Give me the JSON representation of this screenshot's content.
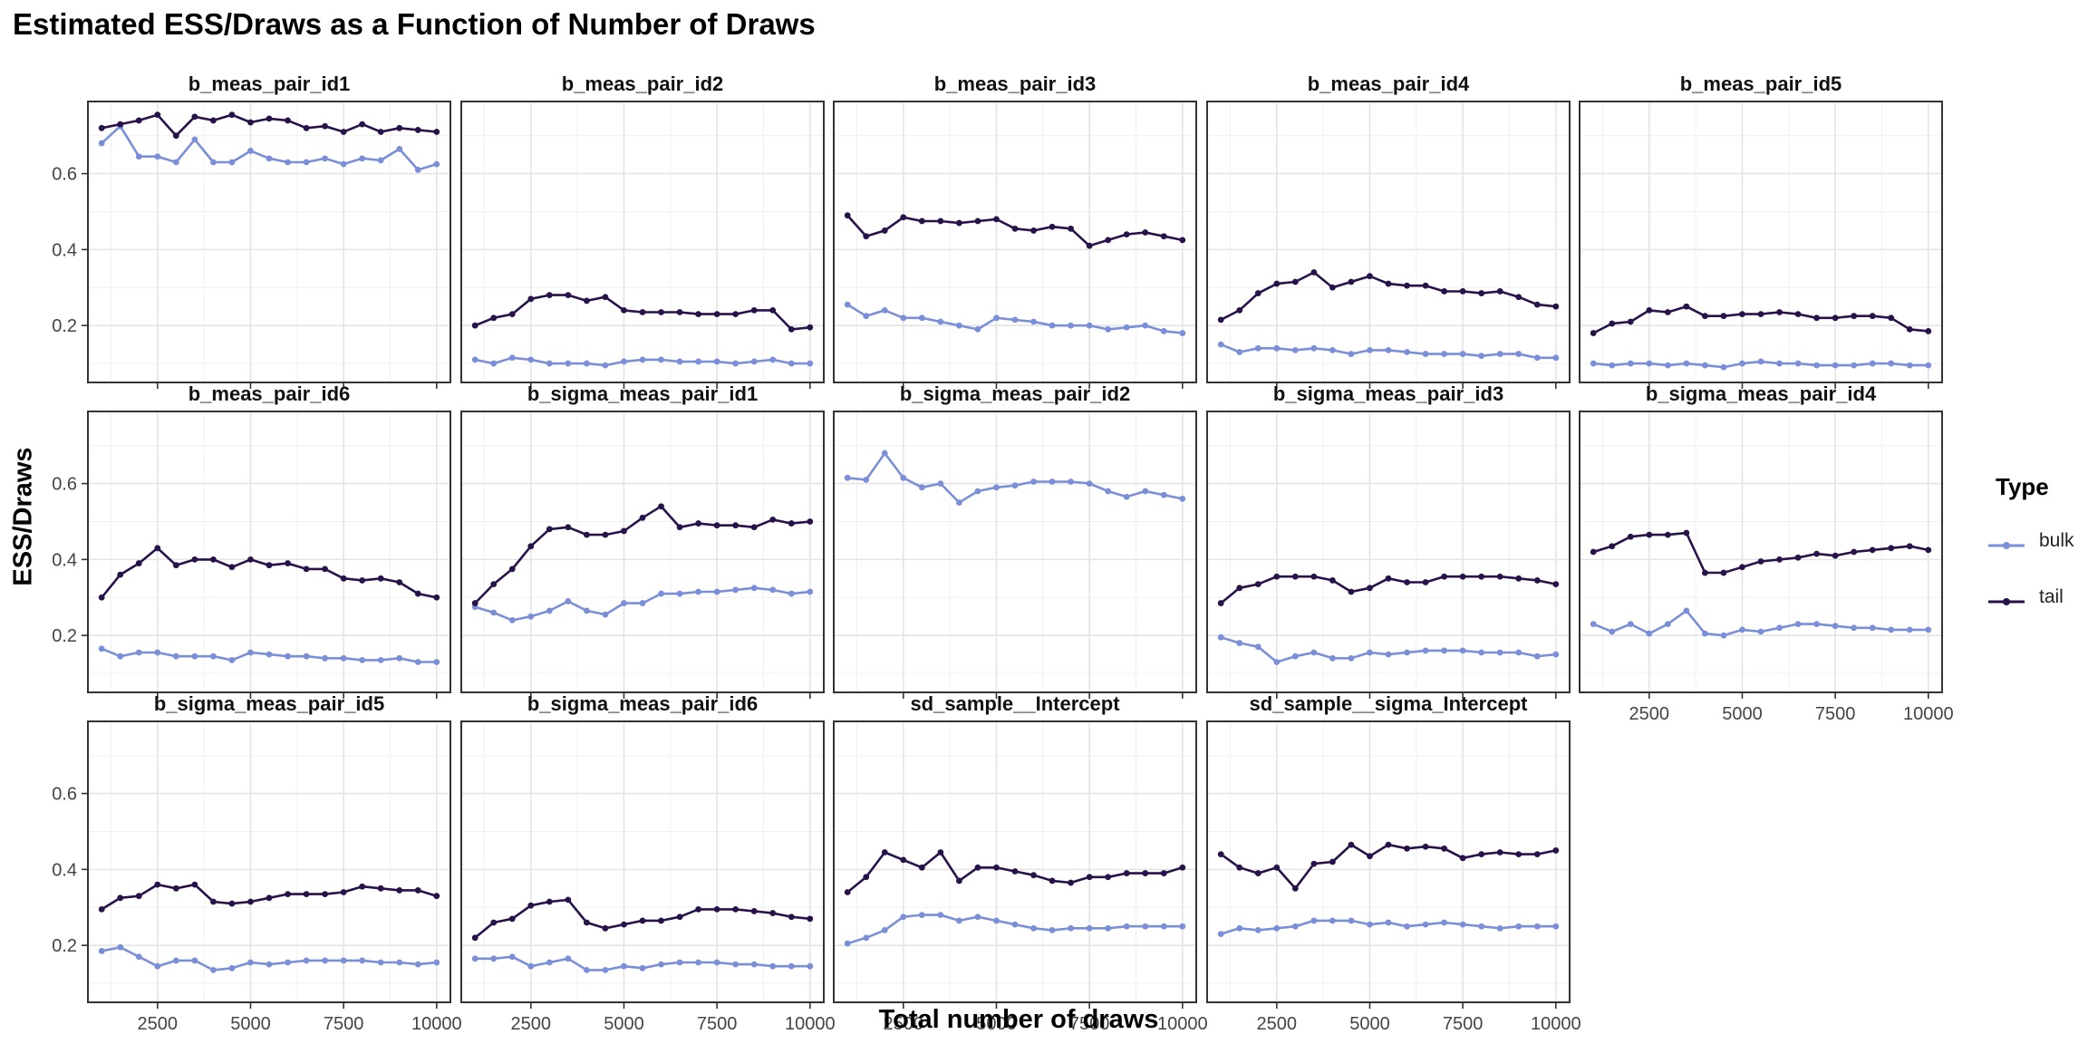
{
  "chart_data": {
    "type": "line",
    "title": "Estimated ESS/Draws as a Function of Number of Draws",
    "xlabel": "Total number of draws",
    "ylabel": "ESS/Draws",
    "x": [
      1000,
      1500,
      2000,
      2500,
      3000,
      3500,
      4000,
      4500,
      5000,
      5500,
      6000,
      6500,
      7000,
      7500,
      8000,
      8500,
      9000,
      9500,
      10000
    ],
    "xlim": [
      630,
      10370
    ],
    "ylim": [
      0.05,
      0.79
    ],
    "x_ticks": [
      "2500",
      "5000",
      "7500",
      "10000"
    ],
    "x_tick_values": [
      2500,
      5000,
      7500,
      10000
    ],
    "y_ticks": [
      "0.2",
      "0.4",
      "0.6"
    ],
    "y_tick_values": [
      0.2,
      0.4,
      0.6
    ],
    "grid": true,
    "legend": {
      "title": "Type",
      "placement": "right",
      "entries": [
        {
          "name": "bulk",
          "color": "#7b8fd9"
        },
        {
          "name": "tail",
          "color": "#27124a"
        }
      ]
    },
    "panels": [
      {
        "name": "b_meas_pair_id1",
        "bulk": [
          0.68,
          0.725,
          0.645,
          0.645,
          0.63,
          0.69,
          0.63,
          0.63,
          0.66,
          0.64,
          0.63,
          0.63,
          0.64,
          0.625,
          0.64,
          0.635,
          0.665,
          0.61,
          0.625
        ],
        "tail": [
          0.72,
          0.73,
          0.74,
          0.755,
          0.7,
          0.75,
          0.74,
          0.755,
          0.735,
          0.745,
          0.74,
          0.72,
          0.725,
          0.71,
          0.73,
          0.71,
          0.72,
          0.715,
          0.71
        ]
      },
      {
        "name": "b_meas_pair_id2",
        "bulk": [
          0.11,
          0.1,
          0.115,
          0.11,
          0.1,
          0.1,
          0.1,
          0.095,
          0.105,
          0.11,
          0.11,
          0.105,
          0.105,
          0.105,
          0.1,
          0.105,
          0.11,
          0.1,
          0.1
        ],
        "tail": [
          0.2,
          0.22,
          0.23,
          0.27,
          0.28,
          0.28,
          0.265,
          0.275,
          0.24,
          0.235,
          0.235,
          0.235,
          0.23,
          0.23,
          0.23,
          0.24,
          0.24,
          0.19,
          0.195
        ]
      },
      {
        "name": "b_meas_pair_id3",
        "bulk": [
          0.255,
          0.225,
          0.24,
          0.22,
          0.22,
          0.21,
          0.2,
          0.19,
          0.22,
          0.215,
          0.21,
          0.2,
          0.2,
          0.2,
          0.19,
          0.195,
          0.2,
          0.185,
          0.18
        ],
        "tail": [
          0.49,
          0.435,
          0.45,
          0.485,
          0.475,
          0.475,
          0.47,
          0.475,
          0.48,
          0.455,
          0.45,
          0.46,
          0.455,
          0.41,
          0.425,
          0.44,
          0.445,
          0.435,
          0.425
        ]
      },
      {
        "name": "b_meas_pair_id4",
        "bulk": [
          0.15,
          0.13,
          0.14,
          0.14,
          0.135,
          0.14,
          0.135,
          0.125,
          0.135,
          0.135,
          0.13,
          0.125,
          0.125,
          0.125,
          0.12,
          0.125,
          0.125,
          0.115,
          0.115
        ],
        "tail": [
          0.215,
          0.24,
          0.285,
          0.31,
          0.315,
          0.34,
          0.3,
          0.315,
          0.33,
          0.31,
          0.305,
          0.305,
          0.29,
          0.29,
          0.285,
          0.29,
          0.275,
          0.255,
          0.25
        ]
      },
      {
        "name": "b_meas_pair_id5",
        "bulk": [
          0.1,
          0.095,
          0.1,
          0.1,
          0.095,
          0.1,
          0.095,
          0.09,
          0.1,
          0.105,
          0.1,
          0.1,
          0.095,
          0.095,
          0.095,
          0.1,
          0.1,
          0.095,
          0.095
        ],
        "tail": [
          0.18,
          0.205,
          0.21,
          0.24,
          0.235,
          0.25,
          0.225,
          0.225,
          0.23,
          0.23,
          0.235,
          0.23,
          0.22,
          0.22,
          0.225,
          0.225,
          0.22,
          0.19,
          0.185
        ]
      },
      {
        "name": "b_meas_pair_id6",
        "bulk": [
          0.165,
          0.145,
          0.155,
          0.155,
          0.145,
          0.145,
          0.145,
          0.135,
          0.155,
          0.15,
          0.145,
          0.145,
          0.14,
          0.14,
          0.135,
          0.135,
          0.14,
          0.13,
          0.13
        ],
        "tail": [
          0.3,
          0.36,
          0.39,
          0.43,
          0.385,
          0.4,
          0.4,
          0.38,
          0.4,
          0.385,
          0.39,
          0.375,
          0.375,
          0.35,
          0.345,
          0.35,
          0.34,
          0.31,
          0.3
        ]
      },
      {
        "name": "b_sigma_meas_pair_id1",
        "bulk": [
          0.275,
          0.26,
          0.24,
          0.25,
          0.265,
          0.29,
          0.265,
          0.255,
          0.285,
          0.285,
          0.31,
          0.31,
          0.315,
          0.315,
          0.32,
          0.325,
          0.32,
          0.31,
          0.315
        ],
        "tail": [
          0.285,
          0.335,
          0.375,
          0.435,
          0.48,
          0.485,
          0.465,
          0.465,
          0.475,
          0.51,
          0.54,
          0.485,
          0.495,
          0.49,
          0.49,
          0.485,
          0.505,
          0.495,
          0.5
        ]
      },
      {
        "name": "b_sigma_meas_pair_id2",
        "bulk": [
          0.615,
          0.61,
          0.68,
          0.615,
          0.59,
          0.6,
          0.55,
          0.58,
          0.59,
          0.595,
          0.605,
          0.605,
          0.605,
          0.6,
          0.58,
          0.565,
          0.58,
          0.57,
          0.56
        ]
      },
      {
        "name": "b_sigma_meas_pair_id3",
        "bulk": [
          0.195,
          0.18,
          0.17,
          0.13,
          0.145,
          0.155,
          0.14,
          0.14,
          0.155,
          0.15,
          0.155,
          0.16,
          0.16,
          0.16,
          0.155,
          0.155,
          0.155,
          0.145,
          0.15
        ],
        "tail": [
          0.285,
          0.325,
          0.335,
          0.355,
          0.355,
          0.355,
          0.345,
          0.315,
          0.325,
          0.35,
          0.34,
          0.34,
          0.355,
          0.355,
          0.355,
          0.355,
          0.35,
          0.345,
          0.335
        ]
      },
      {
        "name": "b_sigma_meas_pair_id4",
        "bulk": [
          0.23,
          0.21,
          0.23,
          0.205,
          0.23,
          0.265,
          0.205,
          0.2,
          0.215,
          0.21,
          0.22,
          0.23,
          0.23,
          0.225,
          0.22,
          0.22,
          0.215,
          0.215,
          0.215
        ],
        "tail": [
          0.42,
          0.435,
          0.46,
          0.465,
          0.465,
          0.47,
          0.365,
          0.365,
          0.38,
          0.395,
          0.4,
          0.405,
          0.415,
          0.41,
          0.42,
          0.425,
          0.43,
          0.435,
          0.425
        ]
      },
      {
        "name": "b_sigma_meas_pair_id5",
        "bulk": [
          0.185,
          0.195,
          0.17,
          0.145,
          0.16,
          0.16,
          0.135,
          0.14,
          0.155,
          0.15,
          0.155,
          0.16,
          0.16,
          0.16,
          0.16,
          0.155,
          0.155,
          0.15,
          0.155
        ],
        "tail": [
          0.295,
          0.325,
          0.33,
          0.36,
          0.35,
          0.36,
          0.315,
          0.31,
          0.315,
          0.325,
          0.335,
          0.335,
          0.335,
          0.34,
          0.355,
          0.35,
          0.345,
          0.345,
          0.33
        ]
      },
      {
        "name": "b_sigma_meas_pair_id6",
        "bulk": [
          0.165,
          0.165,
          0.17,
          0.145,
          0.155,
          0.165,
          0.135,
          0.135,
          0.145,
          0.14,
          0.15,
          0.155,
          0.155,
          0.155,
          0.15,
          0.15,
          0.145,
          0.145,
          0.145
        ],
        "tail": [
          0.22,
          0.26,
          0.27,
          0.305,
          0.315,
          0.32,
          0.26,
          0.245,
          0.255,
          0.265,
          0.265,
          0.275,
          0.295,
          0.295,
          0.295,
          0.29,
          0.285,
          0.275,
          0.27
        ]
      },
      {
        "name": "sd_sample__Intercept",
        "bulk": [
          0.205,
          0.22,
          0.24,
          0.275,
          0.28,
          0.28,
          0.265,
          0.275,
          0.265,
          0.255,
          0.245,
          0.24,
          0.245,
          0.245,
          0.245,
          0.25,
          0.25,
          0.25,
          0.25
        ],
        "tail": [
          0.34,
          0.38,
          0.445,
          0.425,
          0.405,
          0.445,
          0.37,
          0.405,
          0.405,
          0.395,
          0.385,
          0.37,
          0.365,
          0.38,
          0.38,
          0.39,
          0.39,
          0.39,
          0.405
        ]
      },
      {
        "name": "sd_sample__sigma_Intercept",
        "bulk": [
          0.23,
          0.245,
          0.24,
          0.245,
          0.25,
          0.265,
          0.265,
          0.265,
          0.255,
          0.26,
          0.25,
          0.255,
          0.26,
          0.255,
          0.25,
          0.245,
          0.25,
          0.25,
          0.25
        ],
        "tail": [
          0.44,
          0.405,
          0.39,
          0.405,
          0.35,
          0.415,
          0.42,
          0.465,
          0.435,
          0.465,
          0.455,
          0.46,
          0.455,
          0.43,
          0.44,
          0.445,
          0.44,
          0.44,
          0.45
        ]
      }
    ]
  }
}
